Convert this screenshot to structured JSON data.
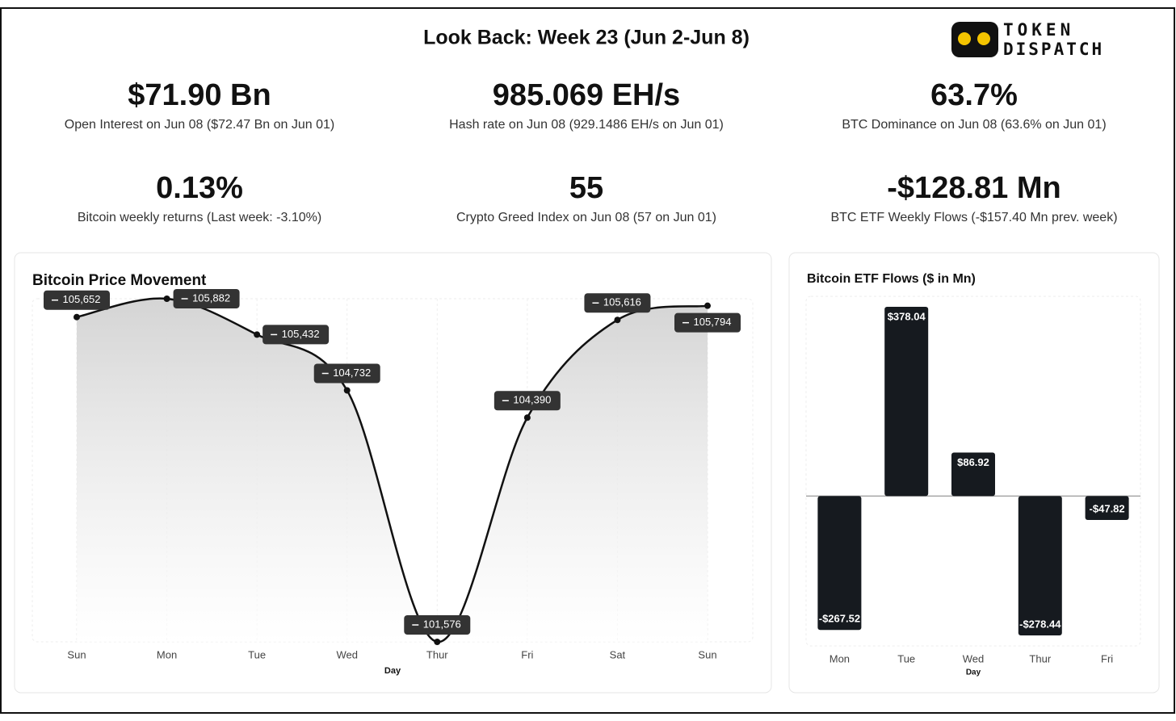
{
  "title": "Look Back: Week 23 (Jun 2-Jun 8)",
  "logo": [
    "TOKEN",
    "DISPATCH"
  ],
  "stats": [
    {
      "value": "$71.90 Bn",
      "caption": "Open Interest on Jun 08 ($72.47 Bn on Jun 01)"
    },
    {
      "value": "985.069 EH/s",
      "caption": "Hash rate on Jun 08 (929.1486 EH/s on Jun 01)"
    },
    {
      "value": "63.7%",
      "caption": "BTC Dominance on Jun 08 (63.6% on Jun 01)"
    },
    {
      "value": "0.13%",
      "caption": "Bitcoin weekly returns (Last week: -3.10%)"
    },
    {
      "value": "55",
      "caption": "Crypto Greed Index on Jun 08 (57 on Jun 01)"
    },
    {
      "value": "-$128.81 Mn",
      "caption": "BTC ETF Weekly Flows (-$157.40 Mn prev. week)"
    }
  ],
  "chart_data": [
    {
      "type": "line",
      "title": "Bitcoin Price Movement",
      "x_label": "Day",
      "categories": [
        "Sun",
        "Mon",
        "Tue",
        "Wed",
        "Thur",
        "Fri",
        "Sat",
        "Sun"
      ],
      "values": [
        105652,
        105882,
        105432,
        104732,
        101576,
        104390,
        105616,
        105794
      ],
      "value_labels": [
        "105,652",
        "105,882",
        "105,432",
        "104,732",
        "101,576",
        "104,390",
        "105,616",
        "105,794"
      ],
      "color": "#111111"
    },
    {
      "type": "bar",
      "title": "Bitcoin ETF Flows ($ in Mn)",
      "x_label": "Day",
      "categories": [
        "Mon",
        "Tue",
        "Wed",
        "Thur",
        "Fri"
      ],
      "values": [
        -267.52,
        378.04,
        86.92,
        -278.44,
        -47.82
      ],
      "value_labels": [
        "-$267.52",
        "$378.04",
        "$86.92",
        "-$278.44",
        "-$47.82"
      ],
      "color": "#161a1f"
    }
  ]
}
